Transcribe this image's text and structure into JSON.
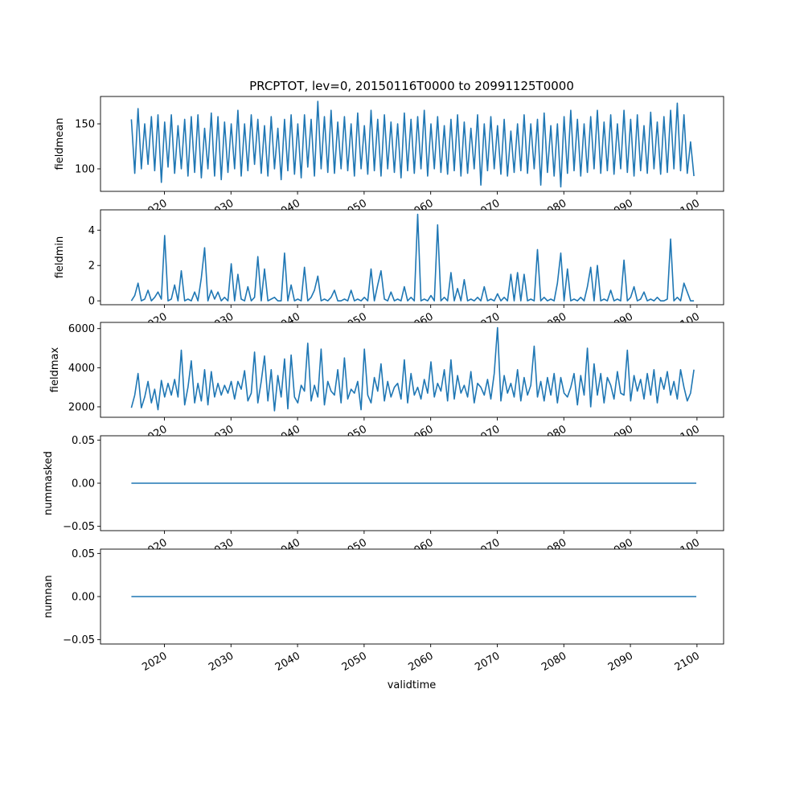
{
  "chart_data": {
    "type": "line",
    "title": "PRCPTOT, lev=0, 20150116T0000 to 20991125T0000",
    "xlabel": "validtime",
    "x_start": 2015.04,
    "x_step": 0.5,
    "x_end": 2099.9,
    "xlim": [
      2010.4,
      2104.0
    ],
    "xticks": [
      2020,
      2030,
      2040,
      2050,
      2060,
      2070,
      2080,
      2090,
      2100
    ],
    "xticklabels": [
      "2020",
      "2030",
      "2040",
      "2050",
      "2060",
      "2070",
      "2080",
      "2090",
      "2100"
    ],
    "line_color": "#1f77b4",
    "panels": [
      {
        "ylabel": "fieldmean",
        "ylim": [
          75,
          180.4
        ],
        "yticks": [
          100,
          150
        ],
        "yticklabels": [
          "100",
          "150"
        ],
        "values": [
          155,
          95,
          167,
          100,
          150,
          105,
          158,
          98,
          160,
          85,
          152,
          102,
          160,
          95,
          148,
          100,
          155,
          92,
          158,
          96,
          160,
          90,
          145,
          100,
          162,
          92,
          158,
          88,
          152,
          96,
          150,
          100,
          165,
          92,
          150,
          98,
          160,
          105,
          155,
          95,
          148,
          92,
          158,
          100,
          145,
          88,
          155,
          98,
          160,
          94,
          150,
          90,
          160,
          102,
          155,
          92,
          175,
          100,
          158,
          96,
          165,
          95,
          152,
          100,
          158,
          98,
          150,
          92,
          162,
          100,
          148,
          94,
          165,
          98,
          155,
          92,
          160,
          100,
          152,
          96,
          150,
          90,
          162,
          98,
          155,
          95,
          158,
          100,
          165,
          92,
          150,
          100,
          158,
          96,
          148,
          94,
          155,
          98,
          160,
          92,
          152,
          95,
          145,
          100,
          160,
          82,
          150,
          98,
          158,
          100,
          148,
          94,
          155,
          92,
          142,
          96,
          150,
          98,
          160,
          95,
          150,
          100,
          155,
          82,
          162,
          96,
          148,
          92,
          150,
          80,
          158,
          95,
          165,
          98,
          155,
          92,
          150,
          96,
          158,
          100,
          165,
          95,
          152,
          98,
          160,
          94,
          150,
          100,
          165,
          96,
          155,
          92,
          160,
          98,
          148,
          95,
          163,
          100,
          152,
          94,
          158,
          96,
          165,
          100,
          173,
          98,
          160,
          95,
          130,
          92
        ]
      },
      {
        "ylabel": "fieldmin",
        "ylim": [
          -0.22,
          5.15
        ],
        "yticks": [
          0,
          2,
          4
        ],
        "yticklabels": [
          "0",
          "2",
          "4"
        ],
        "values": [
          0,
          0.3,
          1.0,
          0,
          0.1,
          0.6,
          0,
          0.2,
          0.5,
          0.1,
          3.7,
          0,
          0.1,
          0.9,
          0,
          1.7,
          0,
          0.1,
          0,
          0.5,
          0,
          1.3,
          3.0,
          0,
          0.6,
          0.1,
          0.5,
          0,
          0.2,
          0,
          2.1,
          0,
          1.5,
          0.1,
          0,
          0.8,
          0,
          0.2,
          2.5,
          0,
          1.8,
          0,
          0.1,
          0.2,
          0,
          0,
          2.7,
          0,
          0.9,
          0,
          0.1,
          0,
          1.9,
          0,
          0.2,
          0.6,
          1.4,
          0,
          0.1,
          0,
          0.2,
          0.6,
          0,
          0,
          0.1,
          0,
          0.6,
          0,
          0.1,
          0,
          0.2,
          0,
          1.8,
          0,
          0.9,
          1.7,
          0.1,
          0,
          0.5,
          0,
          0.1,
          0,
          0.8,
          0,
          0.2,
          0,
          4.9,
          0,
          0.1,
          0,
          0.3,
          0,
          4.3,
          0,
          0.2,
          0,
          1.6,
          0,
          0.7,
          0,
          1.2,
          0,
          0.1,
          0,
          0.2,
          0,
          0.8,
          0,
          0.1,
          0,
          0.4,
          0,
          0.2,
          0,
          1.5,
          0,
          1.6,
          0,
          1.5,
          0,
          0.1,
          0,
          2.9,
          0,
          0.2,
          0,
          0.1,
          0,
          1.0,
          2.7,
          0,
          1.8,
          0,
          0.1,
          0,
          0.2,
          0,
          0.8,
          1.9,
          0,
          2.0,
          0,
          0.1,
          0,
          0.6,
          0,
          0.1,
          0,
          2.3,
          0,
          0.2,
          0.8,
          0,
          0.1,
          0.5,
          0,
          0.1,
          0,
          0.2,
          0,
          0,
          0.1,
          3.5,
          0,
          0.2,
          0,
          1.0,
          0.5,
          0,
          0
        ]
      },
      {
        "ylabel": "fieldmax",
        "ylim": [
          1465,
          6317
        ],
        "yticks": [
          2000,
          4000,
          6000
        ],
        "yticklabels": [
          "2000",
          "4000",
          "6000"
        ],
        "values": [
          1950,
          2600,
          3700,
          1950,
          2500,
          3300,
          2200,
          2900,
          1850,
          3350,
          2500,
          3200,
          2600,
          3400,
          2500,
          4900,
          2100,
          3000,
          4350,
          2200,
          3200,
          2300,
          3900,
          2100,
          3800,
          2500,
          3200,
          2600,
          3100,
          2700,
          3300,
          2400,
          3300,
          2900,
          3850,
          2300,
          2700,
          4800,
          2200,
          3300,
          4600,
          2300,
          3900,
          1800,
          3600,
          2500,
          4450,
          1900,
          4650,
          2500,
          2200,
          3100,
          2800,
          5250,
          2300,
          3100,
          2500,
          4950,
          2100,
          3300,
          2800,
          2600,
          3900,
          2200,
          4500,
          2400,
          2900,
          2700,
          3300,
          1850,
          4950,
          2600,
          2200,
          3500,
          2800,
          4200,
          2300,
          3300,
          2500,
          3000,
          3200,
          2400,
          4400,
          2200,
          3700,
          2600,
          3000,
          2400,
          3400,
          2700,
          4300,
          2500,
          3200,
          2800,
          3900,
          2300,
          4400,
          2400,
          3600,
          2700,
          3100,
          2500,
          3800,
          2200,
          3200,
          3000,
          2600,
          3400,
          2400,
          3700,
          6050,
          2300,
          3600,
          2700,
          3200,
          2500,
          3900,
          2300,
          3500,
          2600,
          3100,
          5100,
          2500,
          3300,
          2300,
          3500,
          2600,
          3700,
          2200,
          3500,
          2700,
          2500,
          3000,
          3700,
          2100,
          3600,
          2600,
          5000,
          2000,
          4200,
          2600,
          3700,
          2200,
          3500,
          3100,
          2400,
          3800,
          2700,
          2600,
          4900,
          2300,
          3600,
          2800,
          3400,
          2400,
          3700,
          2600,
          3900,
          2200,
          3500,
          2900,
          3800,
          2600,
          3300,
          2400,
          3900,
          3000,
          2300,
          2700,
          3900
        ]
      },
      {
        "ylabel": "nummasked",
        "ylim": [
          -0.055,
          0.055
        ],
        "yticks": [
          -0.05,
          0.0,
          0.05
        ],
        "yticklabels": [
          "−0.05",
          "0.00",
          "0.05"
        ],
        "constant": 0
      },
      {
        "ylabel": "numnan",
        "ylim": [
          -0.055,
          0.055
        ],
        "yticks": [
          -0.05,
          0.0,
          0.05
        ],
        "yticklabels": [
          "−0.05",
          "0.00",
          "0.05"
        ],
        "constant": 0
      }
    ]
  }
}
